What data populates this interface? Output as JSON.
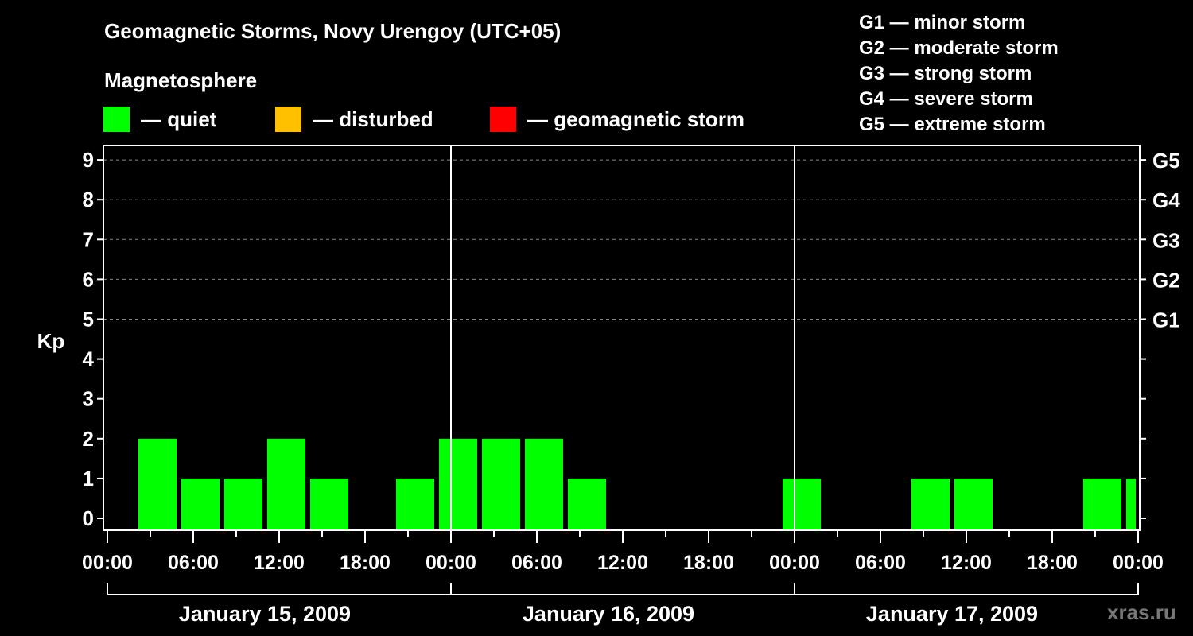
{
  "header": {
    "title": "Geomagnetic Storms, Novy Urengoy (UTC+05)",
    "subtitle": "Magnetosphere"
  },
  "legend": [
    {
      "label": "— quiet",
      "color": "#00ff00"
    },
    {
      "label": "— disturbed",
      "color": "#ffc000"
    },
    {
      "label": "— geomagnetic storm",
      "color": "#ff0000"
    }
  ],
  "g_scale": [
    "G1 — minor storm",
    "G2 — moderate storm",
    "G3 — strong storm",
    "G4 — severe storm",
    "G5 — extreme storm"
  ],
  "watermark": "xras.ru",
  "chart_data": {
    "type": "bar",
    "title": "Geomagnetic Storms, Novy Urengoy (UTC+05)",
    "ylabel": "Kp",
    "xlabel": "",
    "ylim": [
      0,
      9
    ],
    "y_ticks": [
      "0",
      "1",
      "2",
      "3",
      "4",
      "5",
      "6",
      "7",
      "8",
      "9"
    ],
    "right_axis_labels": [
      {
        "kp": 5,
        "label": "G1"
      },
      {
        "kp": 6,
        "label": "G2"
      },
      {
        "kp": 7,
        "label": "G3"
      },
      {
        "kp": 8,
        "label": "G4"
      },
      {
        "kp": 9,
        "label": "G5"
      }
    ],
    "grid": "dashed horizontal at Kp 5-9",
    "x_tick_labels": [
      "00:00",
      "06:00",
      "12:00",
      "18:00",
      "00:00",
      "06:00",
      "12:00",
      "18:00",
      "00:00",
      "06:00",
      "12:00",
      "18:00",
      "00:00"
    ],
    "days": [
      "January 15, 2009",
      "January 16, 2009",
      "January 17, 2009"
    ],
    "slot_hours": 3,
    "slot_start_offset_hours": 2,
    "series": [
      {
        "name": "Kp",
        "categories": [
          "Jan 15 02:00",
          "Jan 15 05:00",
          "Jan 15 08:00",
          "Jan 15 11:00",
          "Jan 15 14:00",
          "Jan 15 17:00",
          "Jan 15 20:00",
          "Jan 15 23:00",
          "Jan 16 02:00",
          "Jan 16 05:00",
          "Jan 16 08:00",
          "Jan 16 11:00",
          "Jan 16 14:00",
          "Jan 16 17:00",
          "Jan 16 20:00",
          "Jan 16 23:00",
          "Jan 17 02:00",
          "Jan 17 05:00",
          "Jan 17 08:00",
          "Jan 17 11:00",
          "Jan 17 14:00",
          "Jan 17 17:00",
          "Jan 17 20:00",
          "Jan 17 23:00"
        ],
        "values": [
          2,
          1,
          1,
          2,
          1,
          0,
          1,
          2,
          2,
          2,
          1,
          0,
          0,
          0,
          0,
          1,
          0,
          0,
          1,
          1,
          0,
          0,
          1,
          1
        ],
        "status": "quiet",
        "color": "#00ff00"
      }
    ]
  }
}
